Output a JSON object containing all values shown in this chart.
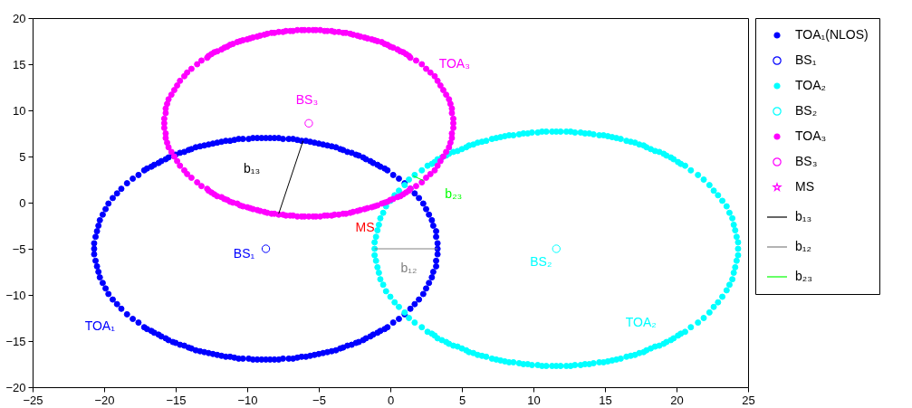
{
  "chart_data": {
    "type": "scatter",
    "xlim": [
      -25,
      25
    ],
    "ylim": [
      -20,
      20
    ],
    "xticks": [
      -25,
      -20,
      -15,
      -10,
      -5,
      0,
      5,
      10,
      15,
      20,
      25
    ],
    "yticks": [
      -20,
      -15,
      -10,
      -5,
      0,
      5,
      10,
      15,
      20
    ],
    "grid": false,
    "legend": "right",
    "series": [
      {
        "name": "TOA₁(NLOS)",
        "color": "#0000ff",
        "x": [
          3.3,
          3.3,
          3.2,
          3.2,
          3.0,
          2.9,
          2.7,
          2.5,
          2.3,
          2.0,
          1.7,
          1.4,
          1.0,
          0.6,
          0.2,
          -0.2,
          -0.7,
          -1.2,
          -1.7,
          -2.2,
          -2.7,
          -3.3,
          -3.8,
          -4.4,
          -5.0,
          -5.6,
          -6.2,
          -6.8,
          -7.5,
          -8.1,
          -8.7,
          -9.3,
          -9.9,
          -10.6,
          -11.2,
          -11.8,
          -12.4,
          -13.0,
          -13.6,
          -14.1,
          -14.7,
          -15.2,
          -15.7,
          -16.2,
          -16.7,
          -17.2,
          -17.6,
          -18.0,
          -18.4,
          -18.8,
          -19.1,
          -19.4,
          -19.7,
          -19.9,
          -20.1,
          -20.3,
          -20.4,
          -20.5,
          -20.6,
          -20.7,
          -20.7,
          -20.7,
          -20.6,
          -20.5,
          -20.4,
          -20.3,
          -20.1,
          -19.9,
          -19.7,
          -19.4,
          -19.1,
          -18.8,
          -18.4,
          -18.0,
          -17.6,
          -17.2,
          -16.7,
          -16.2,
          -15.7,
          -15.2,
          -14.7,
          -14.1,
          -13.6,
          -13.0,
          -12.4,
          -11.8,
          -11.2,
          -10.6,
          -9.9,
          -9.3,
          -8.7,
          -8.1,
          -7.5,
          -6.8,
          -6.2,
          -5.6,
          -5.0,
          -4.4,
          -3.8,
          -3.3,
          -2.7,
          -2.2,
          -1.7,
          -1.2,
          -0.7,
          -0.2,
          0.2,
          0.6,
          1.0,
          1.4,
          1.7,
          2.0,
          2.3,
          2.5,
          2.7,
          2.9,
          3.0,
          3.2,
          3.2,
          3.3,
          -8.4,
          -7.8,
          -7.1,
          -6.5,
          -5.9,
          -5.3,
          -4.7,
          -4.1,
          -3.5,
          -3.0,
          -2.4,
          -1.9,
          -1.4,
          -0.9,
          -0.4,
          -9.0,
          -9.6,
          -10.3,
          -10.9,
          -11.5,
          -12.1,
          -12.7,
          -13.3,
          -13.9,
          -14.4,
          -15.0,
          -15.5,
          -16.0,
          -16.5,
          -17.0,
          -9.0,
          -9.6,
          -10.3,
          -10.9,
          -11.5,
          -12.1,
          -12.7,
          -13.3,
          -13.9,
          -14.4,
          -15.0,
          -15.5,
          -16.0,
          -16.5,
          -17.0,
          -8.4,
          -7.8,
          -7.1,
          -6.5,
          -5.9,
          -5.3,
          -4.7,
          -4.1,
          -3.5,
          -3.0,
          -2.4,
          -1.9,
          -1.4,
          -0.9,
          -0.4
        ],
        "values": [
          -5.0,
          -4.4,
          -3.7,
          -3.1,
          -2.5,
          -1.9,
          -1.3,
          -0.7,
          -0.1,
          0.5,
          1.0,
          1.5,
          2.1,
          2.6,
          3.0,
          3.5,
          3.9,
          4.3,
          4.7,
          5.1,
          5.4,
          5.7,
          6.0,
          6.2,
          6.4,
          6.6,
          6.7,
          6.9,
          6.9,
          7.0,
          7.0,
          7.0,
          6.9,
          6.9,
          6.7,
          6.6,
          6.4,
          6.2,
          6.0,
          5.7,
          5.4,
          5.1,
          4.7,
          4.3,
          3.9,
          3.5,
          3.0,
          2.6,
          2.1,
          1.5,
          1.0,
          0.5,
          -0.1,
          -0.7,
          -1.3,
          -1.9,
          -2.5,
          -3.1,
          -3.7,
          -4.4,
          -5.0,
          -5.6,
          -6.3,
          -6.9,
          -7.5,
          -8.1,
          -8.7,
          -9.3,
          -9.9,
          -10.5,
          -11.0,
          -11.5,
          -12.1,
          -12.6,
          -13.0,
          -13.5,
          -13.9,
          -14.3,
          -14.7,
          -15.1,
          -15.4,
          -15.7,
          -16.0,
          -16.2,
          -16.4,
          -16.6,
          -16.7,
          -16.9,
          -16.9,
          -17.0,
          -17.0,
          -17.0,
          -16.9,
          -16.9,
          -16.7,
          -16.6,
          -16.4,
          -16.2,
          -16.0,
          -15.7,
          -15.4,
          -15.1,
          -14.7,
          -14.3,
          -13.9,
          -13.5,
          -13.0,
          -12.6,
          -12.1,
          -11.5,
          -11.0,
          -10.5,
          -9.9,
          -9.3,
          -8.7,
          -8.1,
          -7.5,
          -6.9,
          -6.3,
          -5.6,
          7.0,
          7.0,
          6.9,
          6.8,
          6.7,
          6.5,
          6.3,
          6.1,
          5.8,
          5.5,
          5.2,
          4.9,
          4.5,
          4.1,
          3.7,
          7.0,
          7.0,
          6.9,
          6.8,
          6.7,
          6.5,
          6.3,
          6.1,
          5.8,
          5.5,
          5.2,
          4.9,
          4.5,
          4.1,
          3.7,
          -17.0,
          -17.0,
          -16.9,
          -16.8,
          -16.7,
          -16.5,
          -16.3,
          -16.1,
          -15.8,
          -15.5,
          -15.2,
          -14.9,
          -14.5,
          -14.1,
          -13.7,
          -17.0,
          -17.0,
          -16.9,
          -16.8,
          -16.7,
          -16.5,
          -16.3,
          -16.1,
          -15.8,
          -15.5,
          -15.2,
          -14.9,
          -14.5,
          -14.1,
          -13.7
        ]
      },
      {
        "name": "BS₁",
        "color": "#0000ff",
        "marker": "circle",
        "x": [
          -8.7
        ],
        "values": [
          -5.0
        ]
      },
      {
        "name": "TOA₂",
        "color": "#00ffff",
        "x": [
          24.3,
          24.3,
          24.2,
          24.1,
          24.0,
          23.9,
          23.7,
          23.5,
          23.2,
          22.9,
          22.6,
          22.3,
          21.9,
          21.5,
          21.0,
          20.6,
          20.1,
          19.6,
          19.1,
          18.5,
          17.9,
          17.4,
          16.8,
          16.1,
          15.5,
          14.9,
          14.2,
          13.6,
          12.9,
          12.3,
          11.6,
          10.9,
          10.3,
          9.6,
          9.0,
          8.3,
          7.7,
          7.1,
          6.4,
          5.8,
          5.3,
          4.7,
          4.1,
          3.6,
          3.1,
          2.6,
          2.2,
          1.7,
          1.3,
          1.0,
          0.6,
          0.3,
          0.0,
          -0.3,
          -0.5,
          -0.7,
          -0.8,
          -0.9,
          -1.0,
          -1.1,
          -1.1,
          -1.1,
          -1.0,
          -0.9,
          -0.8,
          -0.7,
          -0.5,
          -0.3,
          0.0,
          0.3,
          0.6,
          1.0,
          1.3,
          1.7,
          2.2,
          2.6,
          3.1,
          3.6,
          4.1,
          4.7,
          5.3,
          5.8,
          6.4,
          7.1,
          7.7,
          8.3,
          9.0,
          9.6,
          10.3,
          10.9,
          11.6,
          12.3,
          12.9,
          13.6,
          14.2,
          14.9,
          15.5,
          16.1,
          16.8,
          17.4,
          17.9,
          18.5,
          19.1,
          19.6,
          20.1,
          20.6,
          21.0,
          21.5,
          21.9,
          22.3,
          22.6,
          22.9,
          23.2,
          23.5,
          23.7,
          23.9,
          24.0,
          24.1,
          24.2,
          24.3,
          11.9,
          12.6,
          13.3,
          13.9,
          14.6,
          15.2,
          15.8,
          16.5,
          17.1,
          17.7,
          18.2,
          18.8,
          19.3,
          19.8,
          20.3,
          11.3,
          10.6,
          9.9,
          9.3,
          8.6,
          8.0,
          7.4,
          6.7,
          6.1,
          5.5,
          5.0,
          4.4,
          3.9,
          3.3,
          2.9,
          11.3,
          10.6,
          9.9,
          9.3,
          8.6,
          8.0,
          7.4,
          6.7,
          6.1,
          5.5,
          5.0,
          4.4,
          3.9,
          3.3,
          2.9,
          11.9,
          12.6,
          13.3,
          13.9,
          14.6,
          15.2,
          15.8,
          16.5,
          17.1,
          17.7,
          18.2,
          18.8,
          19.3,
          19.8,
          20.3
        ],
        "values": [
          -5.0,
          -4.3,
          -3.7,
          -3.0,
          -2.4,
          -1.7,
          -1.1,
          -0.4,
          0.2,
          0.8,
          1.3,
          1.9,
          2.5,
          3.0,
          3.5,
          4.0,
          4.4,
          4.9,
          5.3,
          5.6,
          6.0,
          6.3,
          6.6,
          6.9,
          7.1,
          7.3,
          7.4,
          7.5,
          7.6,
          7.7,
          7.7,
          7.7,
          7.6,
          7.5,
          7.4,
          7.3,
          7.1,
          6.9,
          6.6,
          6.3,
          6.0,
          5.6,
          5.3,
          4.9,
          4.4,
          4.0,
          3.5,
          3.0,
          2.5,
          1.9,
          1.3,
          0.8,
          0.2,
          -0.4,
          -1.1,
          -1.7,
          -2.4,
          -3.0,
          -3.7,
          -4.3,
          -5.0,
          -5.7,
          -6.3,
          -7.0,
          -7.6,
          -8.3,
          -8.9,
          -9.6,
          -10.2,
          -10.8,
          -11.3,
          -11.9,
          -12.5,
          -13.0,
          -13.5,
          -14.0,
          -14.4,
          -14.9,
          -15.3,
          -15.6,
          -16.0,
          -16.3,
          -16.6,
          -16.9,
          -17.1,
          -17.3,
          -17.4,
          -17.5,
          -17.6,
          -17.7,
          -17.7,
          -17.7,
          -17.6,
          -17.5,
          -17.4,
          -17.3,
          -17.1,
          -16.9,
          -16.6,
          -16.3,
          -16.0,
          -15.6,
          -15.3,
          -14.9,
          -14.4,
          -14.0,
          -13.5,
          -13.0,
          -12.5,
          -11.9,
          -11.3,
          -10.8,
          -10.2,
          -9.5,
          -8.9,
          -8.3,
          -7.6,
          -7.0,
          -6.3,
          -5.7,
          7.7,
          7.7,
          7.6,
          7.5,
          7.3,
          7.2,
          7.0,
          6.7,
          6.5,
          6.2,
          5.8,
          5.5,
          5.1,
          4.7,
          4.2,
          7.7,
          7.7,
          7.6,
          7.5,
          7.3,
          7.2,
          7.0,
          6.7,
          6.5,
          6.2,
          5.8,
          5.5,
          5.1,
          4.7,
          4.2,
          -17.7,
          -17.7,
          -17.6,
          -17.5,
          -17.3,
          -17.2,
          -17.0,
          -16.7,
          -16.5,
          -16.2,
          -15.8,
          -15.5,
          -15.1,
          -14.7,
          -14.2,
          -17.7,
          -17.7,
          -17.6,
          -17.5,
          -17.3,
          -17.2,
          -17.0,
          -16.7,
          -16.5,
          -16.2,
          -15.8,
          -15.5,
          -15.1,
          -14.7,
          -14.2
        ]
      },
      {
        "name": "BS₂",
        "color": "#00ffff",
        "marker": "circle",
        "x": [
          11.6
        ],
        "values": [
          -5.0
        ]
      },
      {
        "name": "TOA₃",
        "color": "#ff00ff",
        "x": [
          4.4,
          4.4,
          4.3,
          4.3,
          4.2,
          4.1,
          3.9,
          3.7,
          3.5,
          3.3,
          3.1,
          2.8,
          2.5,
          2.2,
          1.8,
          1.4,
          1.1,
          0.7,
          0.2,
          -0.2,
          -0.6,
          -1.1,
          -1.6,
          -2.1,
          -2.6,
          -3.1,
          -3.6,
          -4.1,
          -4.6,
          -5.2,
          -5.7,
          -6.2,
          -6.8,
          -7.3,
          -7.8,
          -8.3,
          -8.8,
          -9.3,
          -9.8,
          -10.3,
          -10.7,
          -11.2,
          -11.6,
          -12.1,
          -12.5,
          -12.8,
          -13.2,
          -13.5,
          -13.9,
          -14.2,
          -14.4,
          -14.7,
          -14.9,
          -15.1,
          -15.3,
          -15.5,
          -15.6,
          -15.7,
          -15.7,
          -15.8,
          -15.8,
          -15.8,
          -15.7,
          -15.7,
          -15.6,
          -15.5,
          -15.3,
          -15.1,
          -14.9,
          -14.7,
          -14.4,
          -14.2,
          -13.9,
          -13.5,
          -13.2,
          -12.8,
          -12.5,
          -12.1,
          -11.6,
          -11.2,
          -10.7,
          -10.3,
          -9.8,
          -9.3,
          -8.8,
          -8.3,
          -7.8,
          -7.3,
          -6.8,
          -6.2,
          -5.7,
          -5.2,
          -4.6,
          -4.1,
          -3.6,
          -3.1,
          -2.6,
          -2.1,
          -1.6,
          -1.1,
          -0.6,
          -0.2,
          0.2,
          0.7,
          1.1,
          1.4,
          1.8,
          2.2,
          2.5,
          2.8,
          3.1,
          3.3,
          3.5,
          3.7,
          3.9,
          4.1,
          4.2,
          4.3,
          4.3,
          4.4,
          -5.4,
          -4.9,
          -4.4,
          -3.9,
          -3.3,
          -2.8,
          -2.3,
          -1.8,
          -1.3,
          -0.9,
          -0.4,
          0.0,
          0.5,
          0.9,
          1.3,
          -6.0,
          -6.5,
          -7.0,
          -7.5,
          -8.1,
          -8.6,
          -9.1,
          -9.6,
          -10.0,
          -10.5,
          -11.0,
          -11.4,
          -11.8,
          -12.3,
          -12.7,
          -6.0,
          -6.5,
          -7.0,
          -7.5,
          -8.1,
          -8.6,
          -9.1,
          -9.6,
          -10.0,
          -10.5,
          -11.0,
          -11.4,
          -11.8,
          -12.3,
          -12.7,
          -5.4,
          -4.9,
          -4.4,
          -3.9,
          -3.3,
          -2.8,
          -2.3,
          -1.8,
          -1.3,
          -0.9,
          -0.4,
          0.0,
          0.5,
          0.9,
          1.3
        ],
        "values": [
          8.6,
          9.1,
          9.7,
          10.2,
          10.7,
          11.2,
          11.7,
          12.2,
          12.7,
          13.2,
          13.7,
          14.1,
          14.5,
          15.0,
          15.4,
          15.7,
          16.1,
          16.4,
          16.8,
          17.1,
          17.4,
          17.6,
          17.8,
          18.0,
          18.2,
          18.4,
          18.5,
          18.6,
          18.6,
          18.7,
          18.7,
          18.7,
          18.6,
          18.6,
          18.5,
          18.4,
          18.2,
          18.0,
          17.8,
          17.6,
          17.4,
          17.1,
          16.8,
          16.4,
          16.1,
          15.7,
          15.4,
          15.0,
          14.5,
          14.1,
          13.7,
          13.2,
          12.7,
          12.2,
          11.7,
          11.2,
          10.7,
          10.2,
          9.7,
          9.1,
          8.6,
          8.1,
          7.5,
          7.0,
          6.5,
          6.0,
          5.5,
          5.0,
          4.5,
          4.0,
          3.5,
          3.1,
          2.7,
          2.2,
          1.8,
          1.5,
          1.1,
          0.7,
          0.4,
          0.1,
          -0.1,
          -0.4,
          -0.6,
          -0.8,
          -1.0,
          -1.2,
          -1.3,
          -1.4,
          -1.4,
          -1.5,
          -1.5,
          -1.5,
          -1.4,
          -1.4,
          -1.3,
          -1.2,
          -1.0,
          -0.8,
          -0.6,
          -0.4,
          -0.1,
          0.1,
          0.4,
          0.7,
          1.1,
          1.5,
          1.8,
          2.2,
          2.7,
          3.1,
          3.5,
          4.0,
          4.5,
          5.0,
          5.5,
          6.0,
          6.5,
          7.0,
          7.5,
          8.1,
          18.7,
          18.7,
          18.6,
          18.5,
          18.4,
          18.3,
          18.1,
          17.9,
          17.7,
          17.5,
          17.2,
          16.9,
          16.6,
          16.3,
          15.9,
          18.7,
          18.7,
          18.6,
          18.5,
          18.4,
          18.3,
          18.1,
          17.9,
          17.7,
          17.5,
          17.2,
          16.9,
          16.6,
          16.3,
          15.9,
          -1.5,
          -1.5,
          -1.4,
          -1.3,
          -1.2,
          -1.1,
          -0.9,
          -0.7,
          -0.5,
          -0.3,
          0.0,
          0.3,
          0.6,
          0.9,
          1.3,
          -1.5,
          -1.5,
          -1.4,
          -1.3,
          -1.2,
          -1.1,
          -0.9,
          -0.7,
          -0.5,
          -0.3,
          0.0,
          0.3,
          0.6,
          0.9,
          1.3
        ]
      },
      {
        "name": "BS₃",
        "color": "#ff00ff",
        "marker": "circle",
        "x": [
          -5.7
        ],
        "values": [
          8.6
        ]
      },
      {
        "name": "MS",
        "color": "#ff00ff",
        "marker": "star",
        "x": [
          null
        ],
        "values": [
          null
        ]
      },
      {
        "name": "b₁₃",
        "color": "#000000",
        "type": "line",
        "x": [
          -6.1,
          -7.8
        ],
        "values": [
          6.7,
          -1.2
        ]
      },
      {
        "name": "b₁₂",
        "color": "#808080",
        "type": "line",
        "x": [
          -1.1,
          3.3
        ],
        "values": [
          -5.0,
          -5.0
        ]
      },
      {
        "name": "b₂₃",
        "color": "#00ff00",
        "type": "line",
        "x": [
          1.6,
          2.3
        ],
        "values": [
          2.9,
          2.4
        ]
      }
    ],
    "annotations": [
      {
        "text": "TOA₁",
        "x": -18.4,
        "y": -12.1
      },
      {
        "text": "BS₁",
        "x": -8.7,
        "y": -5.0
      },
      {
        "text": "TOA₂",
        "x": 19.6,
        "y": -14.9
      },
      {
        "text": "BS₂",
        "x": 11.6,
        "y": -5.0
      },
      {
        "text": "TOA₃",
        "x": 2.2,
        "y": 15.0
      },
      {
        "text": "BS₃",
        "x": -5.7,
        "y": 8.6
      },
      {
        "text": "b₁₃",
        "x": -6.95,
        "y": 2.75
      },
      {
        "text": "b₁₂",
        "x": 1.1,
        "y": -5.0
      },
      {
        "text": "b₂₃",
        "x": 1.95,
        "y": 2.65
      },
      "MS"
    ]
  }
}
